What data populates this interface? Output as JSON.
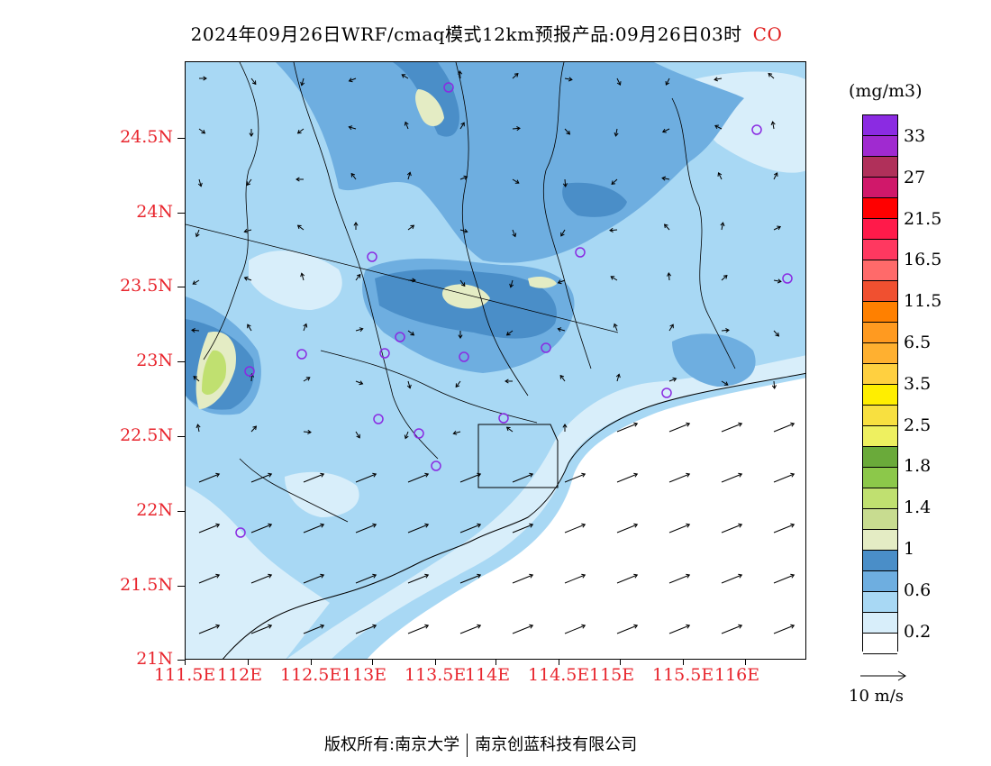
{
  "title": {
    "text": "2024年09月26日WRF/cmaq模式12km预报产品:09月26日03时",
    "species": "CO"
  },
  "map": {
    "lat_labels": [
      "24.5N",
      "24N",
      "23.5N",
      "23N",
      "22.5N",
      "22N",
      "21.5N",
      "21N"
    ],
    "lon_labels": [
      "111.5E",
      "112E",
      "112.5E",
      "113E",
      "113.5E",
      "114E",
      "114.5E",
      "115E",
      "115.5E",
      "116E"
    ],
    "station_marker_color": "#8a2be2",
    "arrow_color": "#000000"
  },
  "legend": {
    "unit": "(mg/m3)",
    "labels": [
      "33",
      "27",
      "21.5",
      "16.5",
      "11.5",
      "6.5",
      "3.5",
      "2.5",
      "1.8",
      "1.4",
      "1",
      "0.6",
      "0.2"
    ],
    "colors": [
      "#8b2be2",
      "#a02ad0",
      "#b0305a",
      "#d0186a",
      "#ff0000",
      "#ff1a4a",
      "#ff3860",
      "#ff6a6a",
      "#f05030",
      "#ff8000",
      "#ff9a20",
      "#ffb030",
      "#ffd040",
      "#ffee00",
      "#f8e040",
      "#eef060",
      "#6aaa3a",
      "#8cc84a",
      "#c0e070",
      "#c8dc90",
      "#e4ecc4",
      "#4a8ec8",
      "#6eaee0",
      "#a8d8f4",
      "#d8eefa",
      "#ffffff"
    ],
    "reference_vector": "10 m/s"
  },
  "footer": {
    "left": "版权所有:南京大学",
    "right": "南京创蓝科技有限公司"
  }
}
